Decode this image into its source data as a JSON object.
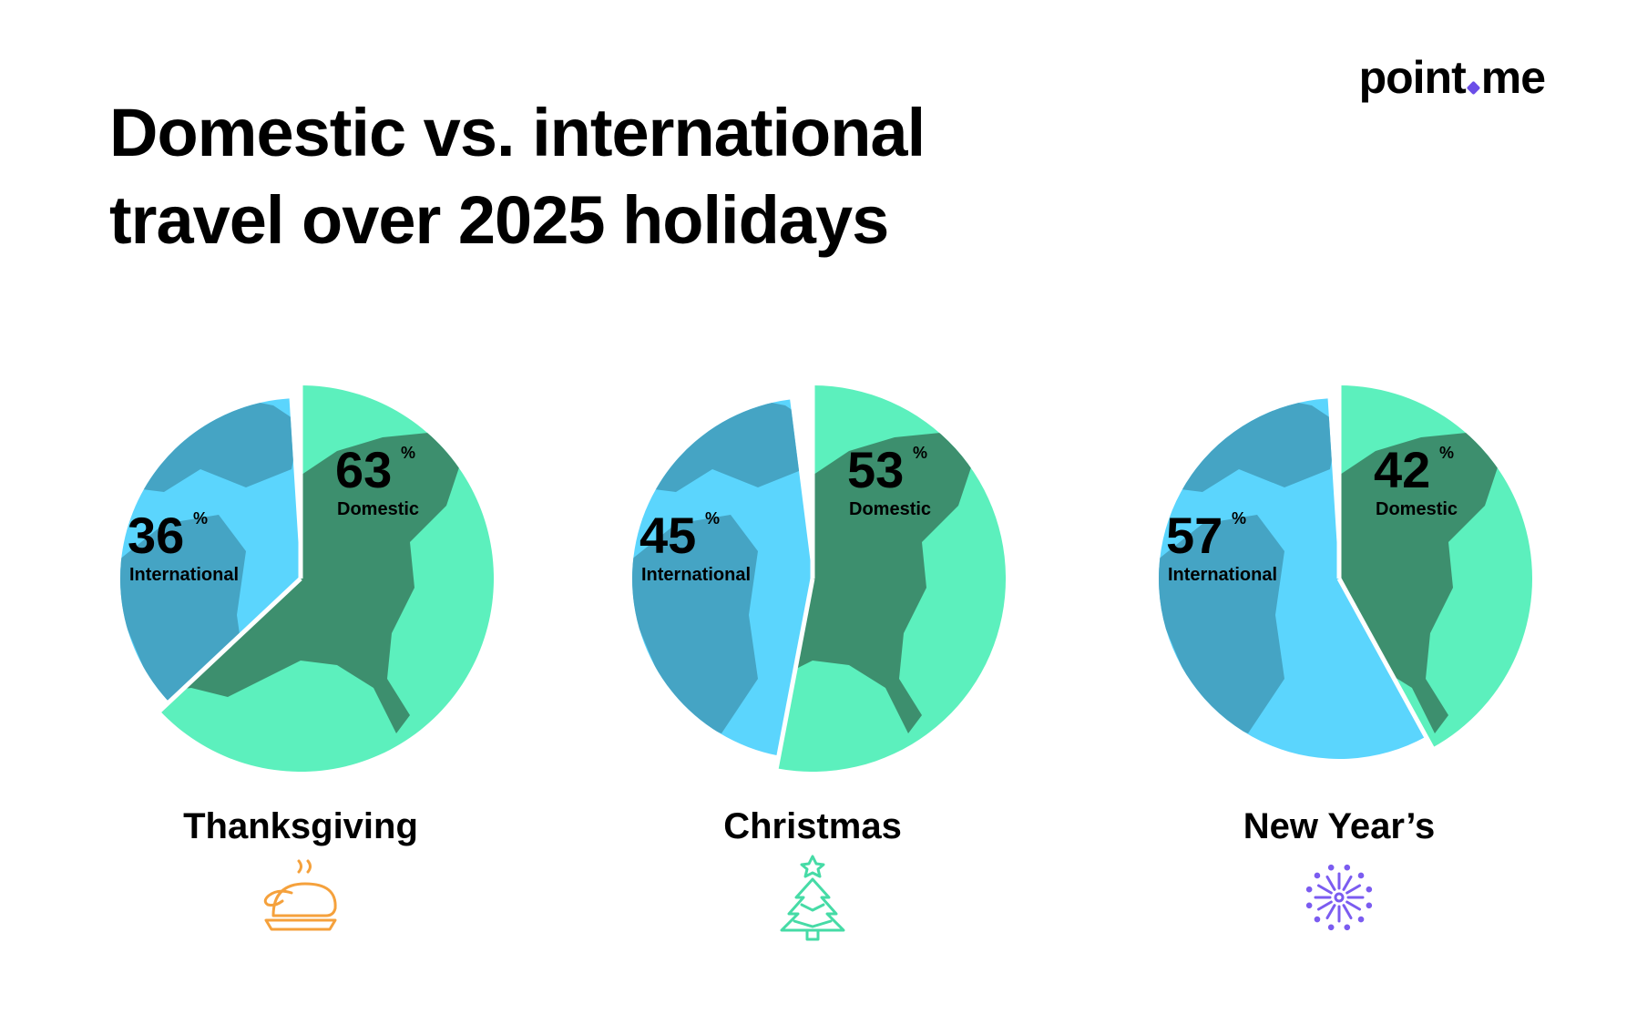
{
  "brand": {
    "name_left": "point",
    "name_right": "me",
    "accent": "#6b4ee8"
  },
  "title": {
    "line1": "Domestic vs. international",
    "line2": "travel over 2025 holidays"
  },
  "colors": {
    "domestic": "#5cf0bd",
    "international": "#5bd5fd",
    "land": "#3d8f6e",
    "land_intl": "#45a4c4"
  },
  "chart_data": {
    "type": "pie",
    "unit": "%",
    "charts": [
      {
        "title": "Thanksgiving",
        "icon": "turkey-icon",
        "icon_color": "#f5a13c",
        "domestic": 63,
        "international": 36,
        "domestic_label": "Domestic",
        "international_label": "International"
      },
      {
        "title": "Christmas",
        "icon": "christmas-tree-icon",
        "icon_color": "#46dba6",
        "domestic": 53,
        "international": 45,
        "domestic_label": "Domestic",
        "international_label": "International"
      },
      {
        "title": "New Year’s",
        "icon": "fireworks-icon",
        "icon_color": "#7b5cf0",
        "domestic": 42,
        "international": 57,
        "domestic_label": "Domestic",
        "international_label": "International"
      }
    ]
  }
}
